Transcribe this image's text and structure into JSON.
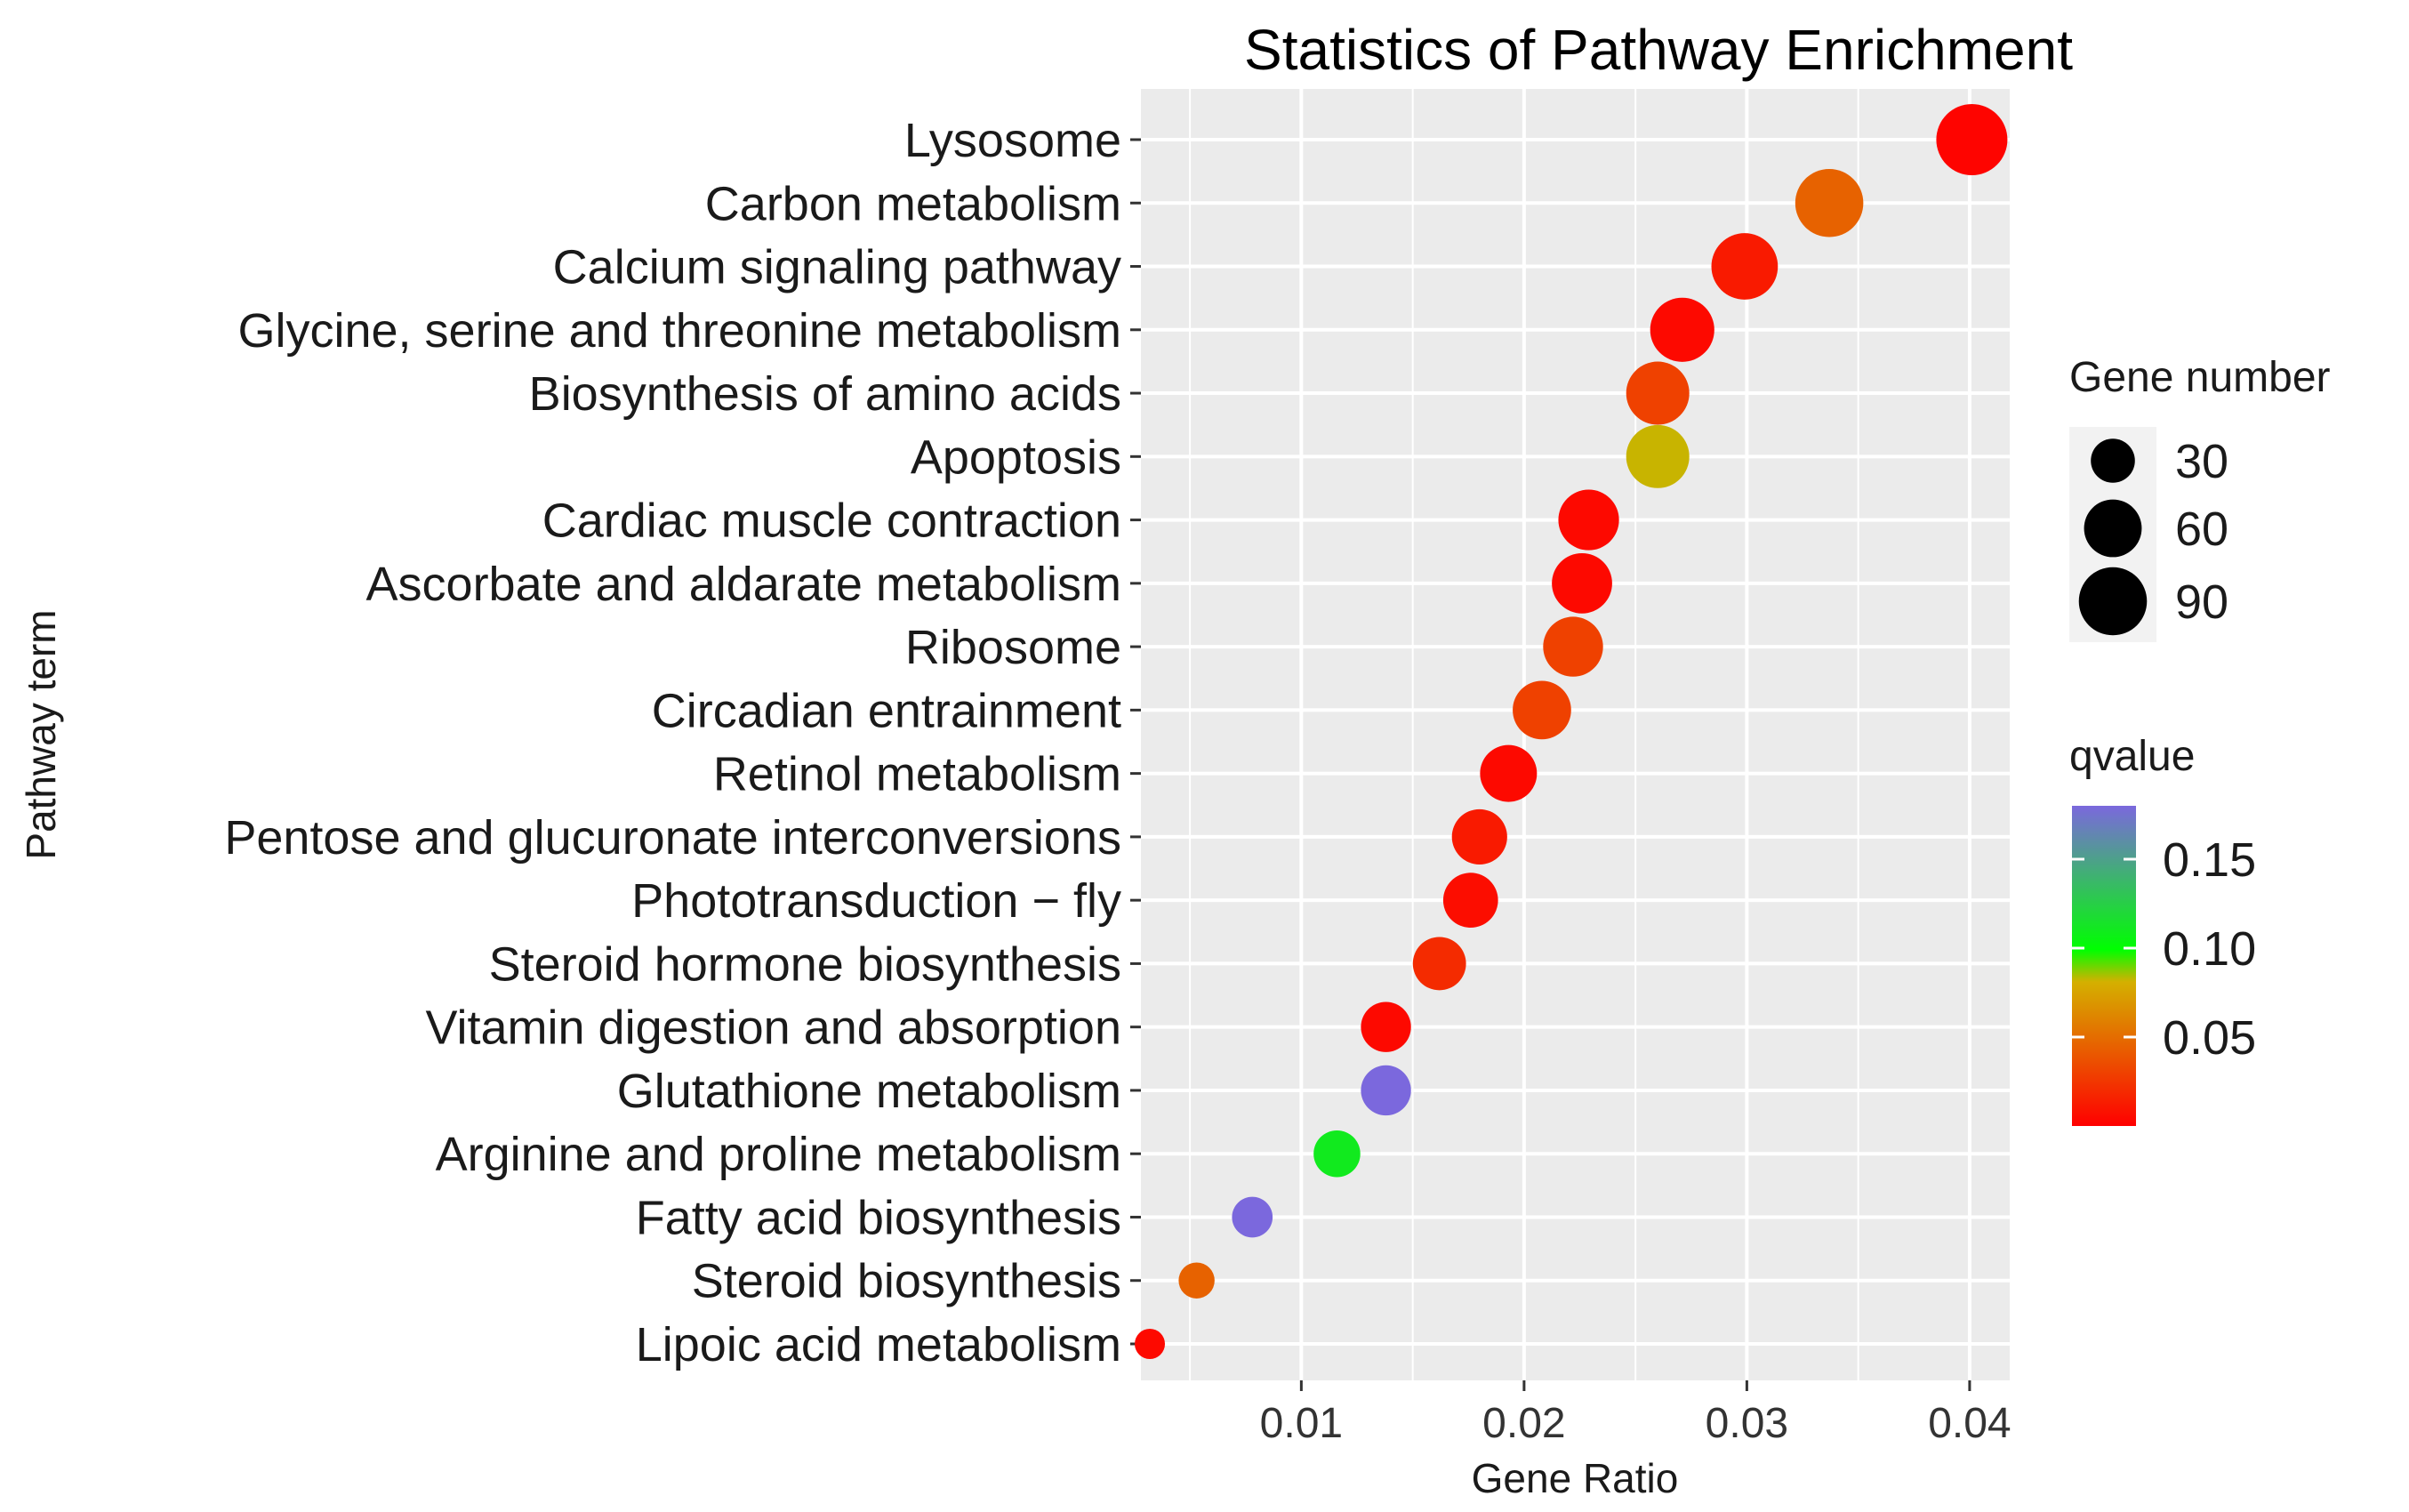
{
  "chart_data": {
    "type": "scatter",
    "title": "Statistics of Pathway Enrichment",
    "xlabel": "Gene Ratio",
    "ylabel": "Pathway term",
    "xlim": [
      0.0028,
      0.0418
    ],
    "x_ticks": [
      0.01,
      0.02,
      0.03,
      0.04
    ],
    "x_tick_labels": [
      "0.01",
      "0.02",
      "0.03",
      "0.04"
    ],
    "grid": true,
    "points": [
      {
        "term": "Lysosome",
        "gene_ratio": 0.0401,
        "gene_number": 100,
        "qvalue": 0.002
      },
      {
        "term": "Carbon metabolism",
        "gene_ratio": 0.0337,
        "gene_number": 90,
        "qvalue": 0.045
      },
      {
        "term": "Calcium signaling pathway",
        "gene_ratio": 0.0299,
        "gene_number": 85,
        "qvalue": 0.012
      },
      {
        "term": "Glycine, serine and threonine metabolism",
        "gene_ratio": 0.0271,
        "gene_number": 78,
        "qvalue": 0.004
      },
      {
        "term": "Biosynthesis of amino acids",
        "gene_ratio": 0.026,
        "gene_number": 75,
        "qvalue": 0.03
      },
      {
        "term": "Apoptosis",
        "gene_ratio": 0.026,
        "gene_number": 75,
        "qvalue": 0.082
      },
      {
        "term": "Cardiac muscle contraction",
        "gene_ratio": 0.0229,
        "gene_number": 68,
        "qvalue": 0.004
      },
      {
        "term": "Ascorbate and aldarate metabolism",
        "gene_ratio": 0.0226,
        "gene_number": 67,
        "qvalue": 0.004
      },
      {
        "term": "Ribosome",
        "gene_ratio": 0.0222,
        "gene_number": 66,
        "qvalue": 0.03
      },
      {
        "term": "Circadian entrainment",
        "gene_ratio": 0.0208,
        "gene_number": 62,
        "qvalue": 0.03
      },
      {
        "term": "Retinol metabolism",
        "gene_ratio": 0.0193,
        "gene_number": 58,
        "qvalue": 0.004
      },
      {
        "term": "Pentose and glucuronate interconversions",
        "gene_ratio": 0.018,
        "gene_number": 54,
        "qvalue": 0.012
      },
      {
        "term": "Phototransduction − fly",
        "gene_ratio": 0.0176,
        "gene_number": 53,
        "qvalue": 0.006
      },
      {
        "term": "Steroid hormone biosynthesis",
        "gene_ratio": 0.0162,
        "gene_number": 49,
        "qvalue": 0.02
      },
      {
        "term": "Vitamin digestion and absorption",
        "gene_ratio": 0.0138,
        "gene_number": 42,
        "qvalue": 0.004
      },
      {
        "term": "Glutathione metabolism",
        "gene_ratio": 0.0138,
        "gene_number": 42,
        "qvalue": 0.18
      },
      {
        "term": "Arginine and proline metabolism",
        "gene_ratio": 0.0116,
        "gene_number": 35,
        "qvalue": 0.11
      },
      {
        "term": "Fatty acid biosynthesis",
        "gene_ratio": 0.0078,
        "gene_number": 24,
        "qvalue": 0.18
      },
      {
        "term": "Steroid biosynthesis",
        "gene_ratio": 0.0053,
        "gene_number": 17,
        "qvalue": 0.045
      },
      {
        "term": "Lipoic acid metabolism",
        "gene_ratio": 0.0032,
        "gene_number": 10,
        "qvalue": 0.004
      }
    ],
    "size_legend": {
      "title": "Gene number",
      "values": [
        30,
        60,
        90
      ],
      "labels": [
        "30",
        "60",
        "90"
      ]
    },
    "color_legend": {
      "title": "qvalue",
      "range": [
        0.0,
        0.18
      ],
      "ticks": [
        0.05,
        0.1,
        0.15
      ],
      "tick_labels": [
        "0.05",
        "0.10",
        "0.15"
      ],
      "colors": [
        "#ff0000",
        "#d4b000",
        "#00ff00",
        "#7b68dd"
      ],
      "color_stops": [
        0.0,
        0.45,
        0.55,
        1.0
      ]
    },
    "colors": {
      "panel_bg": "#ebebeb",
      "grid": "#ffffff",
      "legend_key_bg": "#f2f2f2",
      "legend_key_dot": "#000000"
    }
  }
}
